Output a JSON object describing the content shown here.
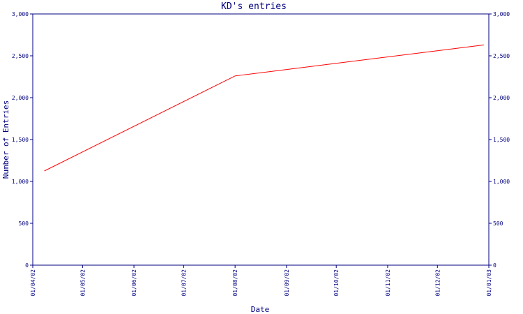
{
  "chart_data": {
    "type": "line",
    "title": "KD's entries",
    "xlabel": "Date",
    "ylabel": "Number of Entries",
    "x_ticks": [
      "01/04/02",
      "01/05/02",
      "01/06/02",
      "01/07/02",
      "01/08/02",
      "01/09/02",
      "01/10/02",
      "01/11/02",
      "01/12/02",
      "01/01/03"
    ],
    "y_ticks": [
      "0",
      "500",
      "1,000",
      "1,500",
      "2,000",
      "2,500",
      "3,000"
    ],
    "y_tick_values": [
      0,
      500,
      1000,
      1500,
      2000,
      2500,
      3000
    ],
    "ylim": [
      0,
      3000
    ],
    "xlim": [
      "2002-04-01",
      "2003-01-01"
    ],
    "grid": false,
    "series": [
      {
        "color": "#ff0000",
        "x": [
          "2002-04-08",
          "2002-08-01",
          "2002-12-29"
        ],
        "y": [
          1125,
          2260,
          2630
        ]
      }
    ]
  }
}
